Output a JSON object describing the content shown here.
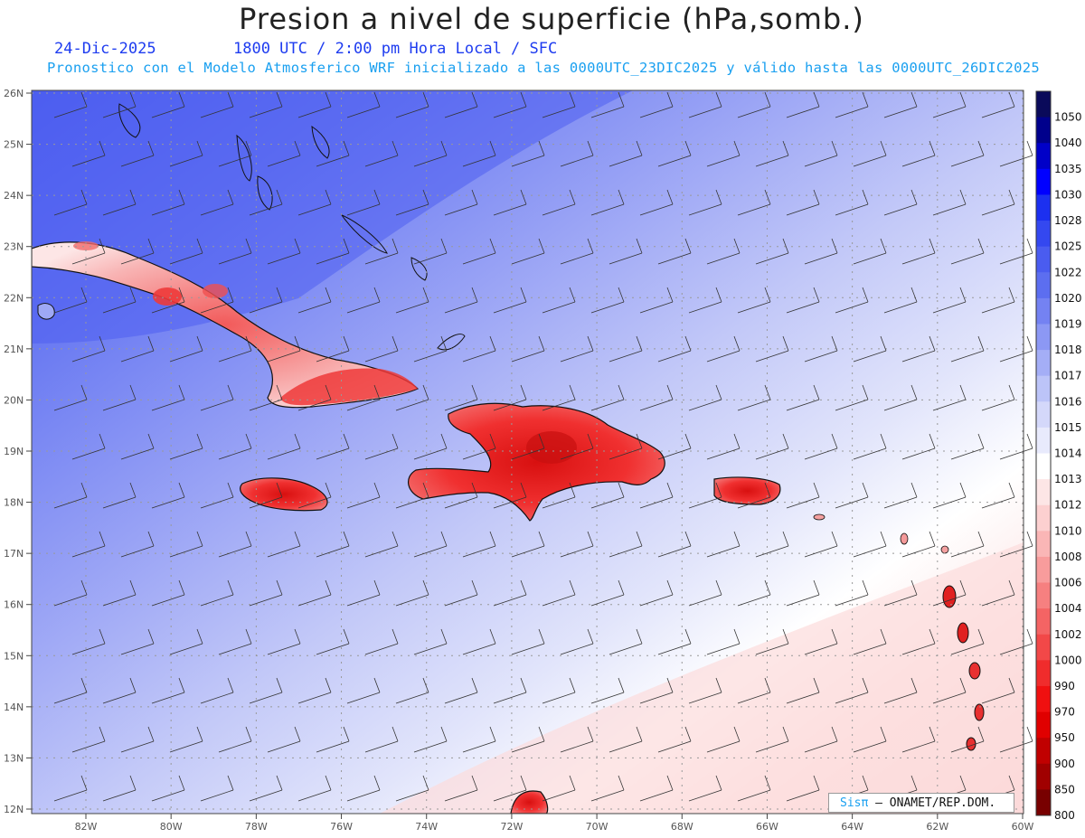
{
  "header": {
    "title": "Presion a nivel de superficie (hPa,somb.)",
    "date": "24-Dic-2025",
    "time": "1800 UTC / 2:00 pm Hora Local / SFC",
    "subtitle": "Pronostico con el Modelo Atmosferico WRF inicializado a las 0000UTC_23DIC2025 y válido hasta las  0000UTC_26DIC2025"
  },
  "axes": {
    "lat_labels": [
      "26N",
      "25N",
      "24N",
      "23N",
      "22N",
      "21N",
      "20N",
      "19N",
      "18N",
      "17N",
      "16N",
      "15N",
      "14N",
      "13N",
      "12N"
    ],
    "lon_labels": [
      "82W",
      "80W",
      "78W",
      "76W",
      "74W",
      "72W",
      "70W",
      "68W",
      "66W",
      "64W",
      "62W",
      "60W"
    ]
  },
  "colorbar": {
    "levels": [
      "1050",
      "1040",
      "1035",
      "1030",
      "1028",
      "1025",
      "1022",
      "1020",
      "1019",
      "1018",
      "1017",
      "1016",
      "1015",
      "1014",
      "1013",
      "1012",
      "1010",
      "1008",
      "1006",
      "1004",
      "1002",
      "1000",
      "990",
      "970",
      "950",
      "900",
      "850",
      "800"
    ],
    "colors": [
      "#0a0a5a",
      "#00008c",
      "#0000c8",
      "#0000ff",
      "#1c30f0",
      "#3448f0",
      "#4a5cf0",
      "#5c6ef0",
      "#7482f2",
      "#8c98f4",
      "#a4aef6",
      "#bcc4f8",
      "#d4d8fa",
      "#e8eafc",
      "#ffffff",
      "#fde6e6",
      "#fcd0d0",
      "#fab6b6",
      "#f89c9c",
      "#f68080",
      "#f46464",
      "#f24848",
      "#f02c2c",
      "#f01010",
      "#e00000",
      "#c00000",
      "#a00000",
      "#780000"
    ]
  },
  "credit": {
    "brand": "Sisπ",
    "text": " – ONAMET/REP.DOM."
  }
}
